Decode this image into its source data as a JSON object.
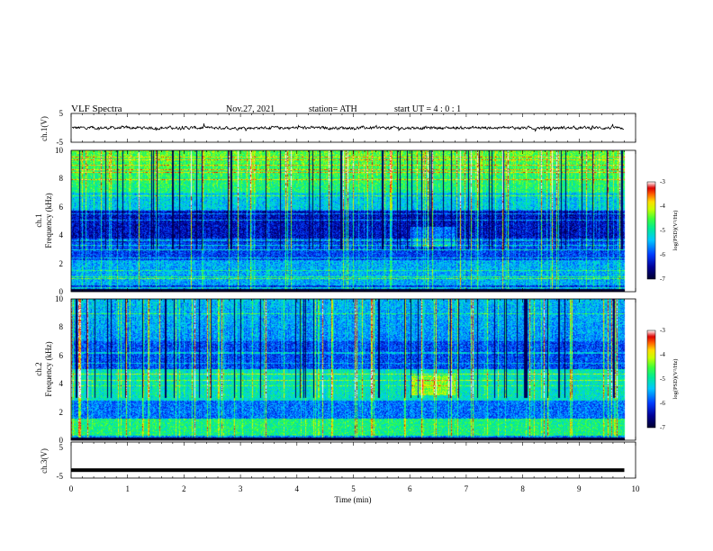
{
  "header": {
    "title": "VLF Spectra",
    "date": "Nov.27, 2021",
    "station": "station= ATH",
    "start_ut": "start UT =   4 : 0 : 1"
  },
  "colors": {
    "waveform": "#000000",
    "colormap": [
      "#000033",
      "#0000a0",
      "#0044ff",
      "#00c8ff",
      "#00e890",
      "#40ff40",
      "#c8ff00",
      "#ffe000",
      "#ff6000",
      "#e00000",
      "#ffffff"
    ]
  },
  "chart_data": [
    {
      "type": "line",
      "name": "ch1-waveform",
      "ylabel": "ch.1(V)",
      "ylim": [
        -5,
        5
      ],
      "yticks": [
        "5",
        "-5"
      ],
      "xlim": [
        0,
        10
      ],
      "description_values": "noisy waveform centred near 0 V, amplitude about ±1 V, data ending near 9.8 min"
    },
    {
      "type": "heatmap",
      "name": "ch1-spectrogram",
      "ylabel": "ch.1",
      "ylabel2": "Frequency (kHz)",
      "ylim": [
        0,
        10
      ],
      "yticks": [
        "0",
        "2",
        "4",
        "6",
        "8",
        "10"
      ],
      "xlim": [
        0,
        10
      ],
      "data_end_min": 9.8,
      "colorbar": {
        "label": "log(PSD)(V²/Hz)",
        "range": [
          -7,
          -3
        ],
        "ticks": [
          "-3",
          "-4",
          "-5",
          "-6",
          "-7"
        ]
      }
    },
    {
      "type": "heatmap",
      "name": "ch2-spectrogram",
      "ylabel": "ch.2",
      "ylabel2": "Frequency (kHz)",
      "ylim": [
        0,
        10
      ],
      "yticks": [
        "0",
        "2",
        "4",
        "6",
        "8",
        "10"
      ],
      "xlim": [
        0,
        10
      ],
      "data_end_min": 9.8,
      "colorbar": {
        "label": "log(PSD)(V²/Hz)",
        "range": [
          -7,
          -3
        ],
        "ticks": [
          "-3",
          "-4",
          "-5",
          "-6",
          "-7"
        ]
      }
    },
    {
      "type": "line",
      "name": "ch3-waveform",
      "ylabel": "ch.3(V)",
      "ylim": [
        -5,
        5
      ],
      "yticks": [
        "5",
        "-5"
      ],
      "xlim": [
        0,
        10
      ],
      "level_value": -2.8
    }
  ],
  "xaxis": {
    "label": "Time (min)",
    "ticks": [
      "0",
      "1",
      "2",
      "3",
      "4",
      "5",
      "6",
      "7",
      "8",
      "9",
      "10"
    ]
  }
}
